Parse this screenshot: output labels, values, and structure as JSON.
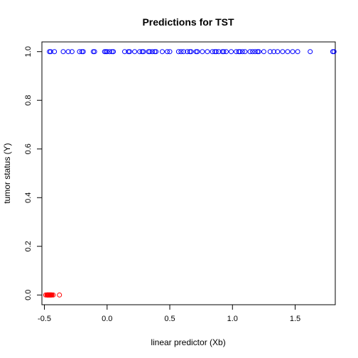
{
  "chart_data": {
    "type": "scatter",
    "title": "Predictions for TST",
    "xlabel": "linear predictor (Xb)",
    "ylabel": "tumor status (Y)",
    "xlim": [
      -0.52,
      1.82
    ],
    "ylim": [
      0,
      1
    ],
    "xticks": [
      "-0.5",
      "0.0",
      "0.5",
      "1.0",
      "1.5"
    ],
    "xtick_values": [
      -0.5,
      0.0,
      0.5,
      1.0,
      1.5
    ],
    "yticks": [
      "0.0",
      "0.2",
      "0.4",
      "0.6",
      "0.8",
      "1.0"
    ],
    "ytick_values": [
      0.0,
      0.2,
      0.4,
      0.6,
      0.8,
      1.0
    ],
    "grid": false,
    "colors": {
      "y1": "#0000ff",
      "y0": "#ff0000"
    },
    "series": [
      {
        "y": 1,
        "x": [
          -0.46,
          -0.45,
          -0.42,
          -0.35,
          -0.31,
          -0.28,
          -0.22,
          -0.2,
          -0.19,
          -0.11,
          -0.1,
          -0.02,
          -0.01,
          0.0,
          0.02,
          0.04,
          0.05,
          0.14,
          0.17,
          0.18,
          0.22,
          0.26,
          0.28,
          0.29,
          0.33,
          0.34,
          0.36,
          0.38,
          0.39,
          0.44,
          0.48,
          0.5,
          0.57,
          0.59,
          0.61,
          0.64,
          0.66,
          0.67,
          0.71,
          0.72,
          0.76,
          0.8,
          0.84,
          0.86,
          0.87,
          0.89,
          0.92,
          0.93,
          0.95,
          0.99,
          1.03,
          1.05,
          1.06,
          1.08,
          1.1,
          1.14,
          1.16,
          1.18,
          1.2,
          1.21,
          1.25,
          1.3,
          1.33,
          1.36,
          1.4,
          1.44,
          1.48,
          1.52,
          1.62,
          1.8,
          1.81
        ]
      },
      {
        "y": 0,
        "x": [
          -0.49,
          -0.48,
          -0.478,
          -0.475,
          -0.47,
          -0.468,
          -0.465,
          -0.46,
          -0.458,
          -0.455,
          -0.45,
          -0.448,
          -0.445,
          -0.44,
          -0.43,
          -0.38
        ]
      }
    ]
  }
}
